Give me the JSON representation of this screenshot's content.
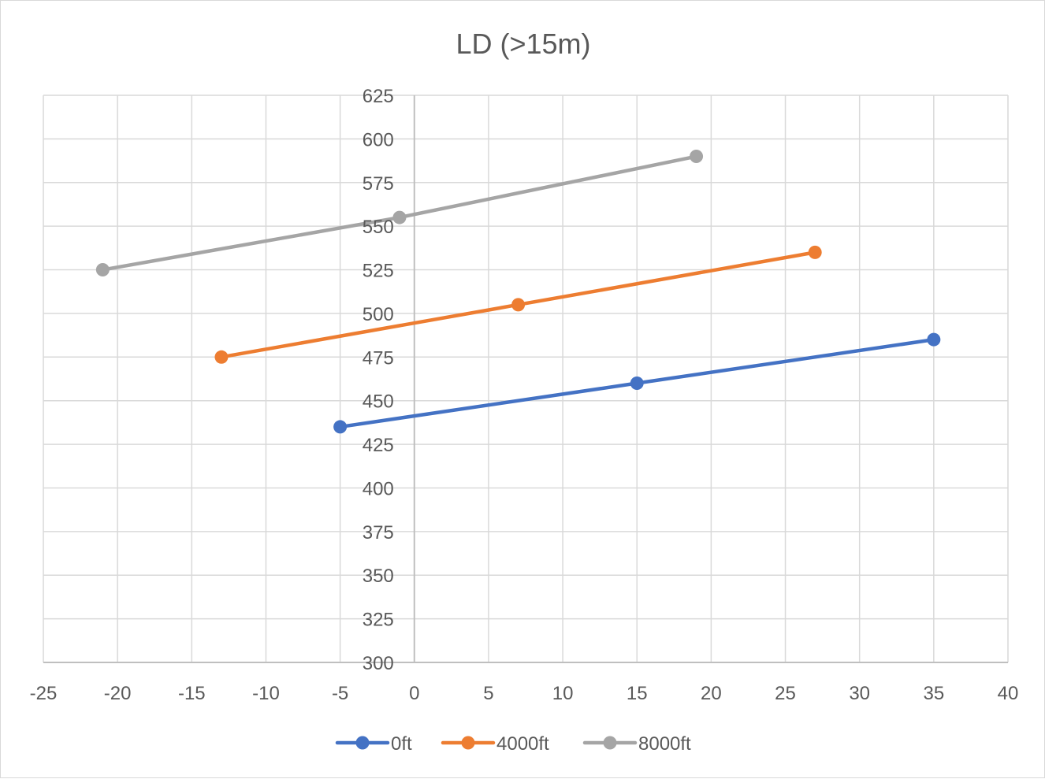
{
  "chart_data": {
    "type": "scatter",
    "title": "LD (>15m)",
    "xlabel": "",
    "ylabel": "",
    "xlim": [
      -25,
      40
    ],
    "ylim": [
      300,
      625
    ],
    "x_ticks": [
      -25,
      -20,
      -15,
      -10,
      -5,
      0,
      5,
      10,
      15,
      20,
      25,
      30,
      35,
      40
    ],
    "x_tick_labels": [
      "-25",
      "-20",
      "-15",
      "-10",
      "-5",
      "0",
      "5",
      "10",
      "15",
      "20",
      "25",
      "30",
      "35",
      "40"
    ],
    "y_ticks": [
      300,
      325,
      350,
      375,
      400,
      425,
      450,
      475,
      500,
      525,
      550,
      575,
      600,
      625
    ],
    "y_tick_labels": [
      "300",
      "325",
      "350",
      "375",
      "400",
      "425",
      "450",
      "475",
      "500",
      "525",
      "550",
      "575",
      "600",
      "625"
    ],
    "grid": true,
    "legend_position": "bottom",
    "series": [
      {
        "name": "0ft",
        "color": "#4472C4",
        "x": [
          -5,
          15,
          35
        ],
        "y": [
          435,
          460,
          485
        ]
      },
      {
        "name": "4000ft",
        "color": "#ED7D31",
        "x": [
          -13,
          7,
          27
        ],
        "y": [
          475,
          505,
          535
        ]
      },
      {
        "name": "8000ft",
        "color": "#A5A5A5",
        "x": [
          -21,
          -1,
          19
        ],
        "y": [
          525,
          555,
          590
        ]
      }
    ]
  }
}
